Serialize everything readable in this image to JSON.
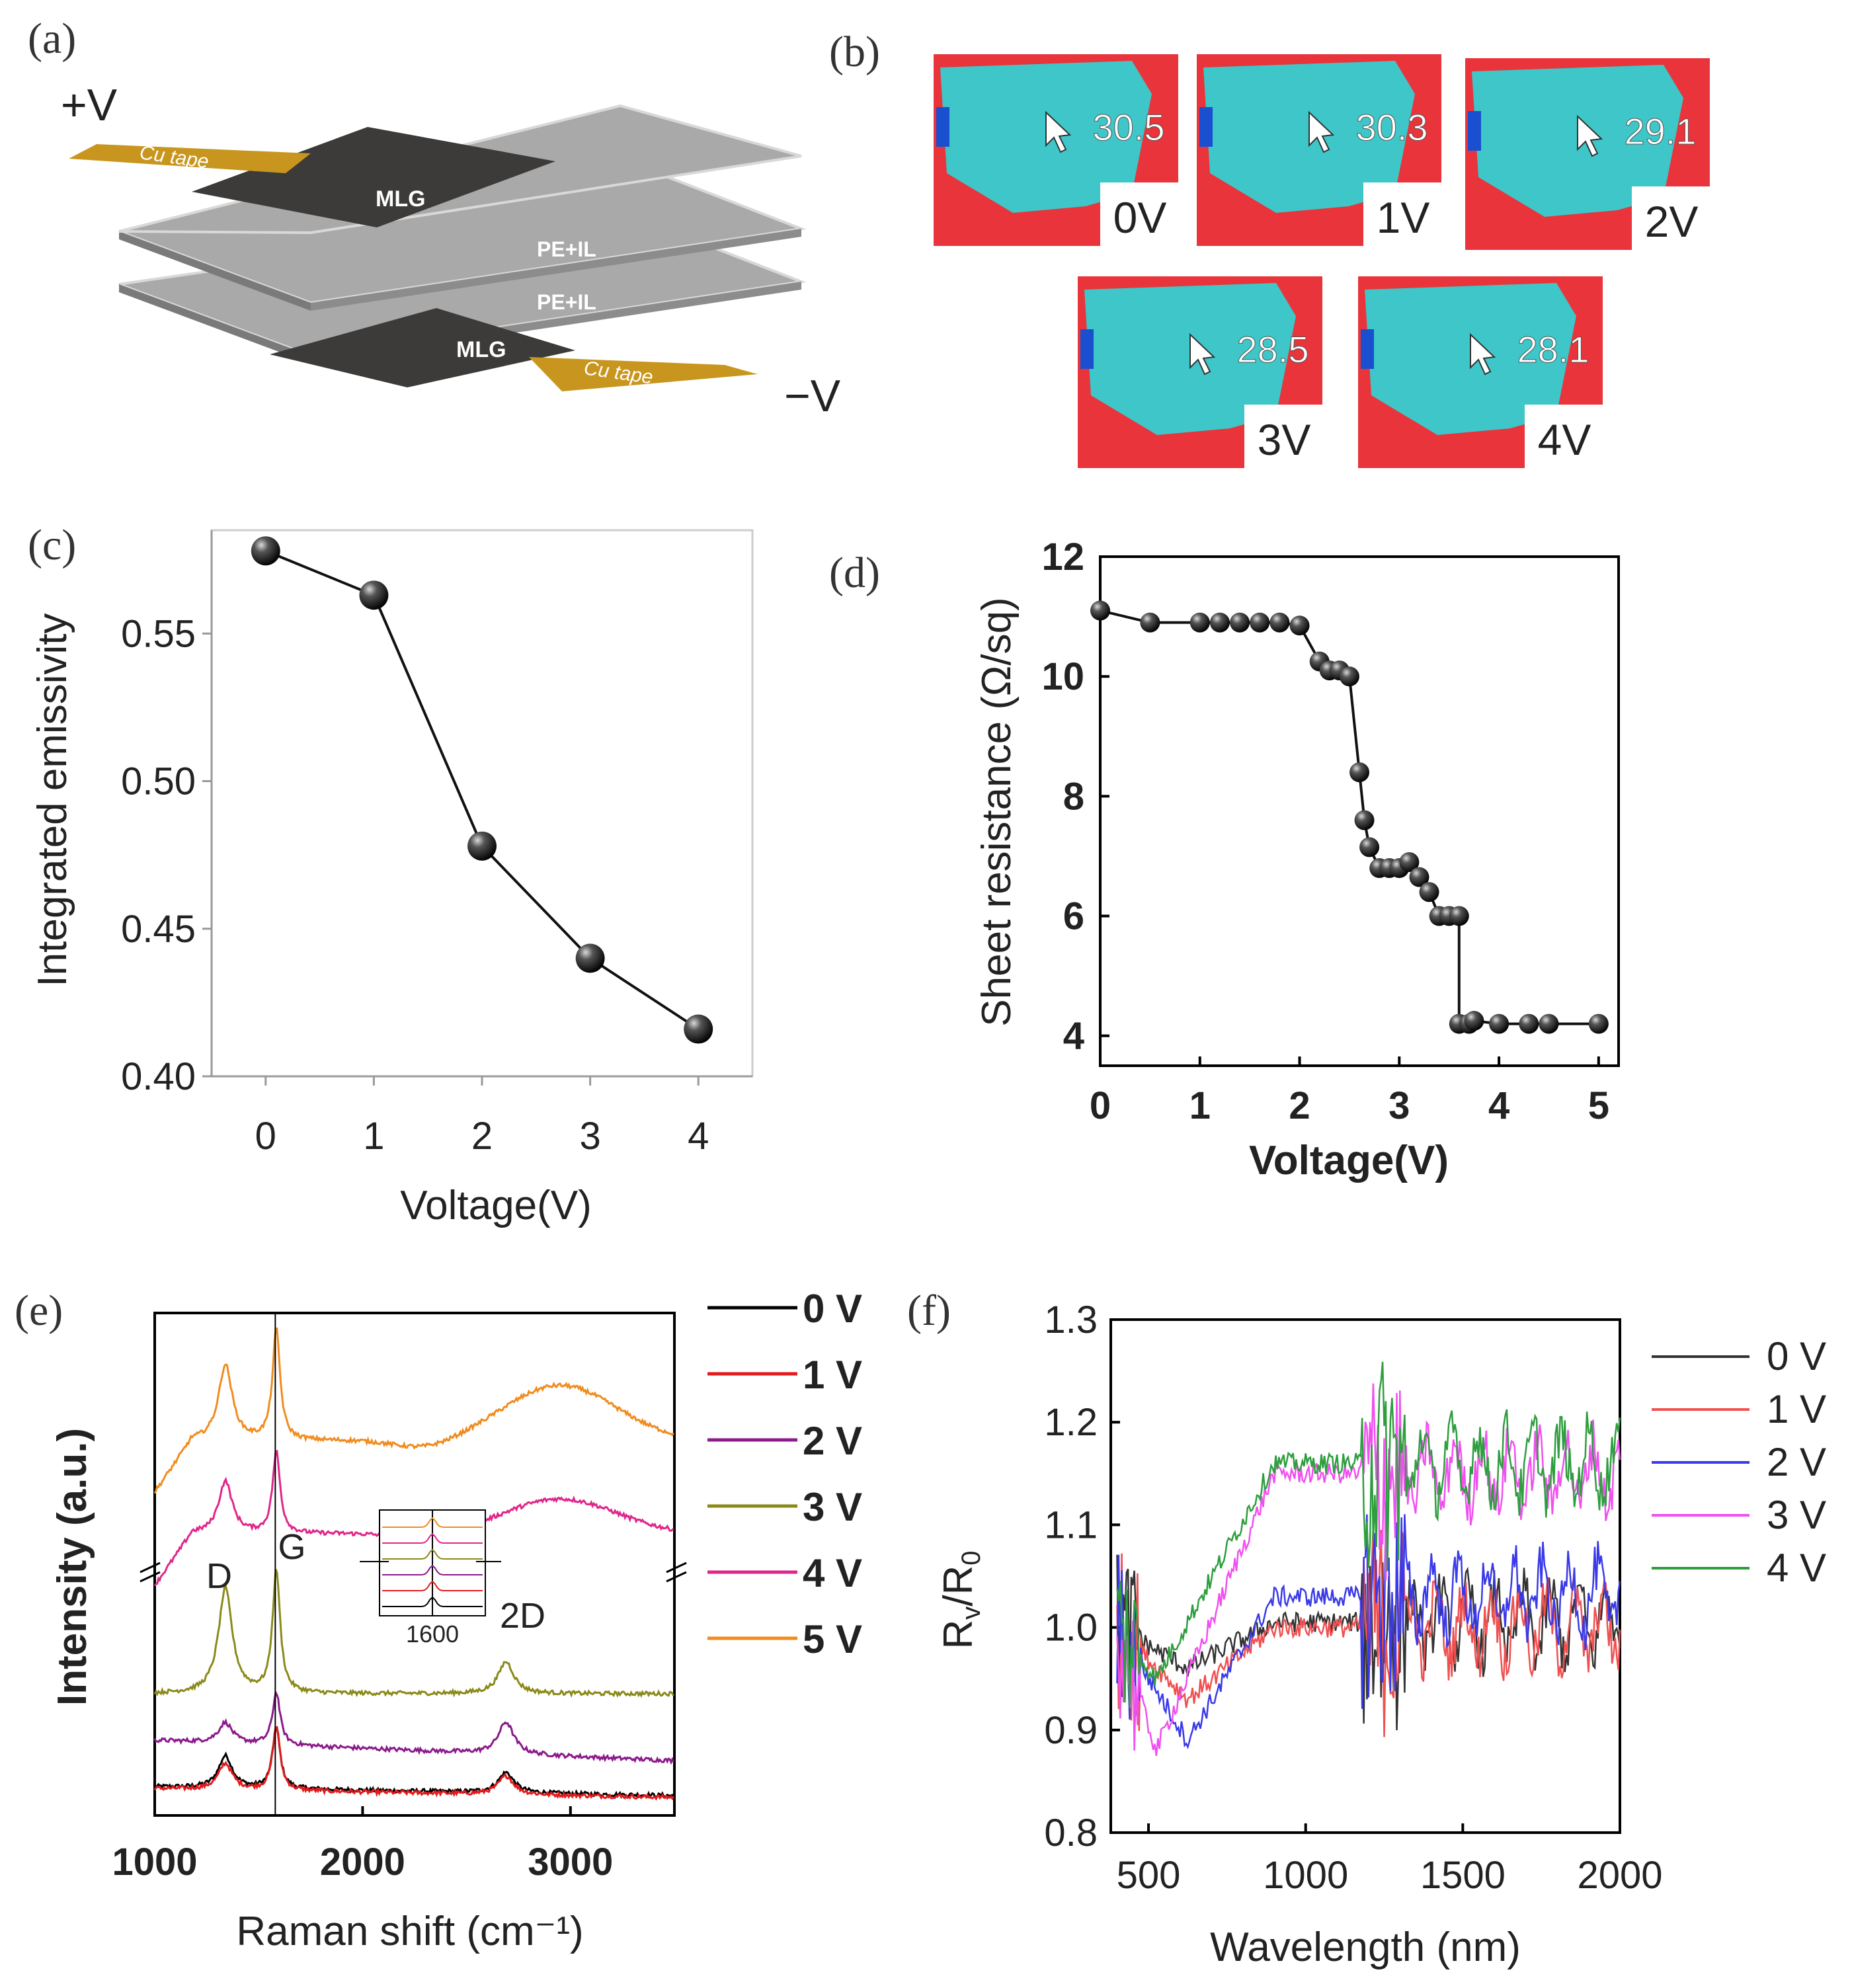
{
  "figure": {
    "panel_labels": [
      "(a)",
      "(b)",
      "(c)",
      "(d)",
      "(e)",
      "(f)"
    ]
  },
  "panel_a": {
    "plus_label": "+V",
    "minus_label": "−V",
    "tape_label": "Cu tape",
    "mlg_label": "MLG",
    "pe_label": "PE+IL",
    "colors": {
      "tape": "#c8961e",
      "mlg": "#3c3b39",
      "sheet": "#a9a9a9"
    }
  },
  "panel_b": {
    "tiles": [
      {
        "voltage": "0V",
        "temp": "30.5"
      },
      {
        "voltage": "1V",
        "temp": "30.3"
      },
      {
        "voltage": "2V",
        "temp": "29.1"
      },
      {
        "voltage": "3V",
        "temp": "28.5"
      },
      {
        "voltage": "4V",
        "temp": "28.1"
      }
    ],
    "colors": {
      "hot": "#e8343a",
      "cool": "#3ec6c8"
    }
  },
  "chart_data": [
    {
      "id": "c",
      "type": "line",
      "title": "",
      "xlabel": "Voltage(V)",
      "ylabel": "Integrated emissivity",
      "x": [
        0,
        1,
        2,
        3,
        4
      ],
      "y": [
        0.578,
        0.563,
        0.478,
        0.44,
        0.416
      ],
      "xlim": [
        -0.5,
        4.5
      ],
      "ylim": [
        0.4,
        0.585
      ],
      "xticks": [
        0,
        1,
        2,
        3,
        4
      ],
      "yticks": [
        0.4,
        0.45,
        0.5,
        0.55
      ],
      "ytick_labels": [
        "0.40",
        "0.45",
        "0.50",
        "0.55"
      ],
      "marker_color": "#111111"
    },
    {
      "id": "d",
      "type": "line",
      "title": "",
      "xlabel": "Voltage(V)",
      "ylabel": "Sheet resistance (Ω/sq)",
      "x": [
        0,
        0.5,
        1,
        1.2,
        1.4,
        1.6,
        1.8,
        2.0,
        2.2,
        2.3,
        2.4,
        2.5,
        2.6,
        2.65,
        2.7,
        2.8,
        2.9,
        3.0,
        3.1,
        3.2,
        3.3,
        3.4,
        3.5,
        3.6,
        3.6,
        3.7,
        3.75,
        4.0,
        4.3,
        4.5,
        5.0
      ],
      "y": [
        11.1,
        10.9,
        10.9,
        10.9,
        10.9,
        10.9,
        10.9,
        10.85,
        10.25,
        10.1,
        10.1,
        10.0,
        8.4,
        7.6,
        7.15,
        6.8,
        6.8,
        6.8,
        6.9,
        6.65,
        6.4,
        6.0,
        6.0,
        6.0,
        4.2,
        4.2,
        4.25,
        4.2,
        4.2,
        4.2,
        4.2
      ],
      "xlim": [
        0,
        5.2
      ],
      "ylim": [
        3.5,
        12
      ],
      "xticks": [
        0,
        1,
        2,
        3,
        4,
        5
      ],
      "yticks": [
        4,
        6,
        8,
        10,
        12
      ],
      "marker_color": "#111111"
    },
    {
      "id": "e",
      "type": "line",
      "title": "",
      "xlabel": "Raman shift (cm⁻¹)",
      "ylabel": "Intensity (a.u.)",
      "xlim": [
        1000,
        3500
      ],
      "xticks": [
        1000,
        2000,
        3000
      ],
      "reference_line_x": 1580,
      "peak_labels": [
        "D",
        "G",
        "2D"
      ],
      "inset_tick": "1600",
      "series": [
        {
          "name": "0 V",
          "color": "#000000",
          "offset": 0.0,
          "peaks": {
            "D": 0.55,
            "G": 1.05,
            "2D": 0.35
          },
          "bg": 0.15,
          "slope": -0.15
        },
        {
          "name": "1 V",
          "color": "#e41a1c",
          "offset": 0.0,
          "peaks": {
            "D": 0.45,
            "G": 1.1,
            "2D": 0.32
          },
          "bg": 0.12,
          "slope": -0.15
        },
        {
          "name": "2 V",
          "color": "#8b1a8b",
          "offset": 0.75,
          "peaks": {
            "D": 0.35,
            "G": 0.9,
            "2D": 0.55
          },
          "bg": 0.2,
          "slope": -0.35
        },
        {
          "name": "3 V",
          "color": "#8a8a1a",
          "offset": 1.6,
          "peaks": {
            "D": 1.8,
            "G": 2.1,
            "2D": 0.55
          },
          "bg": 0.15,
          "slope": 0.0
        },
        {
          "name": "4 V",
          "color": "#e0268a",
          "offset": 4.0,
          "peaks": {
            "D": 0.9,
            "G": 1.4,
            "2D": 0.0
          },
          "bg": 0.5,
          "slope": 0.0,
          "hump": 0.6
        },
        {
          "name": "5 V",
          "color": "#f08c1e",
          "offset": 5.0,
          "peaks": {
            "D": 1.3,
            "G": 1.9,
            "2D": 0.0
          },
          "bg": 1.1,
          "slope": 0.0,
          "hump": 0.95
        }
      ]
    },
    {
      "id": "f",
      "type": "line",
      "title": "",
      "xlabel": "Wavelength (nm)",
      "ylabel": "Rv/R0",
      "xlim": [
        380,
        2000
      ],
      "ylim": [
        0.8,
        1.3
      ],
      "xticks": [
        500,
        1000,
        1500,
        2000
      ],
      "yticks": [
        0.8,
        0.9,
        1.0,
        1.1,
        1.2,
        1.3
      ],
      "ytick_labels": [
        "0.8",
        "0.9",
        "1.0",
        "1.1",
        "1.2",
        "1.3"
      ],
      "series": [
        {
          "name": "0 V",
          "color": "#333333",
          "plateau": 1.005,
          "dip": 0.96
        },
        {
          "name": "1 V",
          "color": "#f05050",
          "plateau": 1.0,
          "dip": 0.93
        },
        {
          "name": "2 V",
          "color": "#3a3ae8",
          "plateau": 1.03,
          "dip": 0.89
        },
        {
          "name": "3 V",
          "color": "#f050f0",
          "plateau": 1.15,
          "dip": 0.88
        },
        {
          "name": "4 V",
          "color": "#2e9e3e",
          "plateau": 1.16,
          "dip": 0.95
        }
      ]
    }
  ]
}
